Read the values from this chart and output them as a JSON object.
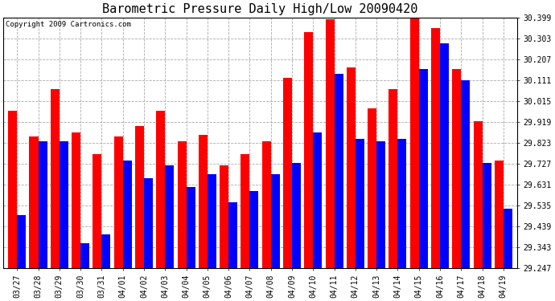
{
  "title": "Barometric Pressure Daily High/Low 20090420",
  "copyright": "Copyright 2009 Cartronics.com",
  "dates": [
    "03/27",
    "03/28",
    "03/29",
    "03/30",
    "03/31",
    "04/01",
    "04/02",
    "04/03",
    "04/04",
    "04/05",
    "04/06",
    "04/07",
    "04/08",
    "04/09",
    "04/10",
    "04/11",
    "04/12",
    "04/13",
    "04/14",
    "04/15",
    "04/16",
    "04/17",
    "04/18",
    "04/19"
  ],
  "highs": [
    29.97,
    29.85,
    30.07,
    29.87,
    29.77,
    29.85,
    29.9,
    29.97,
    29.83,
    29.86,
    29.72,
    29.77,
    29.83,
    30.12,
    30.33,
    30.39,
    30.17,
    29.98,
    30.07,
    30.42,
    30.35,
    30.16,
    29.92,
    29.74
  ],
  "lows": [
    29.49,
    29.83,
    29.83,
    29.36,
    29.4,
    29.74,
    29.66,
    29.72,
    29.62,
    29.68,
    29.55,
    29.6,
    29.68,
    29.73,
    29.87,
    30.14,
    29.84,
    29.83,
    29.84,
    30.16,
    30.28,
    30.11,
    29.73,
    29.52
  ],
  "high_color": "#FF0000",
  "low_color": "#0000FF",
  "bg_color": "#FFFFFF",
  "grid_color": "#AAAAAA",
  "yticks": [
    29.247,
    29.343,
    29.439,
    29.535,
    29.631,
    29.727,
    29.823,
    29.919,
    30.015,
    30.111,
    30.207,
    30.303,
    30.399
  ],
  "ymin": 29.247,
  "ymax": 30.399,
  "bar_width": 0.42,
  "title_fontsize": 11,
  "tick_fontsize": 7,
  "copyright_fontsize": 6.5
}
